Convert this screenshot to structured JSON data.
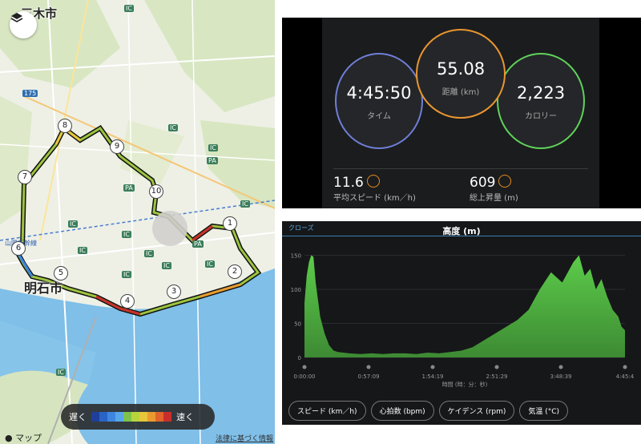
{
  "map": {
    "city_top": "三木市",
    "city_main": "明石市",
    "route_badge": "175",
    "ic_labels": [
      "IC",
      "IC",
      "IC",
      "IC",
      "IC",
      "IC",
      "IC",
      "IC",
      "IC",
      "IC",
      "IC",
      "IC"
    ],
    "pa_labels": [
      "PA",
      "PA",
      "PA"
    ],
    "rail_label": "山陽新幹線",
    "markers": [
      "1",
      "2",
      "3",
      "4",
      "5",
      "6",
      "7",
      "8",
      "9",
      "10"
    ],
    "speed_legend": {
      "slow": "遅く",
      "fast": "速く",
      "colors": [
        "#1f3f9a",
        "#2a63c6",
        "#3d86e0",
        "#58a6e8",
        "#7fc24a",
        "#b7d43c",
        "#e8c53a",
        "#ec9a30",
        "#e2642a",
        "#c92f2a"
      ]
    },
    "attribution": "マップ",
    "legal": "法律に基づく情報",
    "layers_icon": "layers-icon"
  },
  "stats": {
    "time": {
      "value": "4:45:50",
      "label": "タイム",
      "color": "#6f7fd6"
    },
    "distance": {
      "value": "55.08",
      "label": "距離 (km)",
      "color": "#e9962f"
    },
    "calories": {
      "value": "2,223",
      "label": "カロリー",
      "color": "#5fd35a"
    },
    "avg_speed": {
      "value": "11.6",
      "label": "平均スピード (km／h)"
    },
    "ascent": {
      "value": "609",
      "label": "総上昇量 (m)"
    }
  },
  "elevation": {
    "close": "クローズ",
    "title": "高度 (m)",
    "y_ticks": [
      "150",
      "100",
      "50",
      "0"
    ],
    "x_ticks": [
      "0:00:00",
      "0:57:09",
      "1:54:19",
      "2:51:29",
      "3:48:39",
      "4:45:4"
    ],
    "x_label": "時間 (時：分：秒)",
    "tabs": [
      "スピード (km／h)",
      "心拍数 (bpm)",
      "ケイデンス (rpm)",
      "気温 (°C)"
    ],
    "chart_data": {
      "type": "area",
      "x": [
        0,
        2,
        4,
        6,
        8,
        10,
        14,
        18,
        22,
        26,
        30,
        40,
        50,
        60,
        70,
        80,
        90,
        100,
        110,
        120,
        130,
        140,
        150,
        160,
        170,
        180,
        190,
        200,
        210,
        220,
        230,
        240,
        245,
        250,
        255,
        260,
        265,
        270,
        275,
        280,
        283,
        286
      ],
      "y": [
        80,
        120,
        140,
        150,
        148,
        110,
        60,
        35,
        18,
        10,
        8,
        6,
        5,
        6,
        5,
        6,
        6,
        5,
        7,
        6,
        8,
        10,
        15,
        25,
        35,
        45,
        55,
        70,
        100,
        125,
        110,
        140,
        150,
        120,
        130,
        100,
        115,
        90,
        70,
        60,
        45,
        40
      ],
      "x_unit": "minutes",
      "ylim": [
        0,
        160
      ],
      "color": "#5ccc4a"
    }
  }
}
